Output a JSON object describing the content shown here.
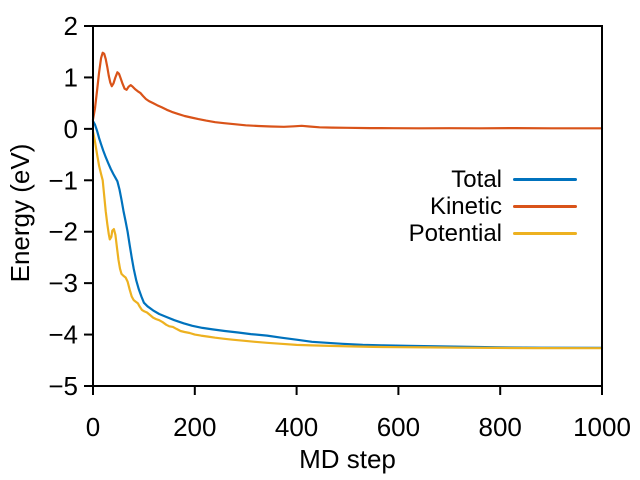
{
  "figure": {
    "background_color": "#ffffff",
    "frame_color": "#000000",
    "text_color": "#000000"
  },
  "chart_data": {
    "type": "line",
    "title": "",
    "xlabel": "MD step",
    "ylabel": "Energy (eV)",
    "xlim": [
      0,
      1000
    ],
    "ylim": [
      -5,
      2
    ],
    "xticks": [
      0,
      200,
      400,
      600,
      800,
      1000
    ],
    "yticks": [
      2,
      1,
      0,
      -1,
      -2,
      -3,
      -4,
      -5
    ],
    "grid": false,
    "legend_position": "center-right",
    "series": [
      {
        "name": "Total",
        "color": "#0072BD",
        "points": [
          [
            0,
            0.15
          ],
          [
            4,
            0.08
          ],
          [
            8,
            -0.04
          ],
          [
            12,
            -0.18
          ],
          [
            16,
            -0.3
          ],
          [
            20,
            -0.42
          ],
          [
            25,
            -0.55
          ],
          [
            30,
            -0.67
          ],
          [
            35,
            -0.78
          ],
          [
            40,
            -0.88
          ],
          [
            44,
            -0.95
          ],
          [
            48,
            -1.02
          ],
          [
            52,
            -1.18
          ],
          [
            56,
            -1.38
          ],
          [
            60,
            -1.6
          ],
          [
            64,
            -1.8
          ],
          [
            68,
            -2.0
          ],
          [
            72,
            -2.25
          ],
          [
            76,
            -2.5
          ],
          [
            80,
            -2.72
          ],
          [
            85,
            -2.95
          ],
          [
            90,
            -3.12
          ],
          [
            95,
            -3.26
          ],
          [
            100,
            -3.38
          ],
          [
            107,
            -3.45
          ],
          [
            118,
            -3.53
          ],
          [
            130,
            -3.6
          ],
          [
            145,
            -3.66
          ],
          [
            160,
            -3.72
          ],
          [
            178,
            -3.78
          ],
          [
            195,
            -3.83
          ],
          [
            215,
            -3.87
          ],
          [
            235,
            -3.9
          ],
          [
            259,
            -3.93
          ],
          [
            285,
            -3.96
          ],
          [
            310,
            -3.99
          ],
          [
            342,
            -4.02
          ],
          [
            370,
            -4.06
          ],
          [
            400,
            -4.1
          ],
          [
            430,
            -4.14
          ],
          [
            460,
            -4.16
          ],
          [
            490,
            -4.18
          ],
          [
            530,
            -4.2
          ],
          [
            570,
            -4.21
          ],
          [
            620,
            -4.22
          ],
          [
            680,
            -4.23
          ],
          [
            740,
            -4.24
          ],
          [
            800,
            -4.25
          ],
          [
            880,
            -4.255
          ],
          [
            1000,
            -4.26
          ]
        ]
      },
      {
        "name": "Kinetic",
        "color": "#D95319",
        "points": [
          [
            0,
            0.18
          ],
          [
            4,
            0.4
          ],
          [
            8,
            0.75
          ],
          [
            12,
            1.1
          ],
          [
            16,
            1.38
          ],
          [
            19,
            1.48
          ],
          [
            22,
            1.46
          ],
          [
            25,
            1.36
          ],
          [
            28,
            1.2
          ],
          [
            31,
            1.03
          ],
          [
            34,
            0.9
          ],
          [
            37,
            0.83
          ],
          [
            40,
            0.88
          ],
          [
            44,
            1.0
          ],
          [
            48,
            1.1
          ],
          [
            51,
            1.07
          ],
          [
            54,
            0.99
          ],
          [
            58,
            0.88
          ],
          [
            62,
            0.78
          ],
          [
            66,
            0.76
          ],
          [
            70,
            0.82
          ],
          [
            74,
            0.85
          ],
          [
            78,
            0.82
          ],
          [
            83,
            0.77
          ],
          [
            88,
            0.73
          ],
          [
            93,
            0.7
          ],
          [
            98,
            0.64
          ],
          [
            104,
            0.58
          ],
          [
            110,
            0.54
          ],
          [
            118,
            0.5
          ],
          [
            126,
            0.46
          ],
          [
            135,
            0.42
          ],
          [
            145,
            0.37
          ],
          [
            155,
            0.33
          ],
          [
            167,
            0.29
          ],
          [
            180,
            0.25
          ],
          [
            193,
            0.22
          ],
          [
            207,
            0.19
          ],
          [
            222,
            0.16
          ],
          [
            240,
            0.13
          ],
          [
            258,
            0.11
          ],
          [
            278,
            0.09
          ],
          [
            300,
            0.07
          ],
          [
            325,
            0.055
          ],
          [
            350,
            0.045
          ],
          [
            375,
            0.04
          ],
          [
            395,
            0.05
          ],
          [
            410,
            0.06
          ],
          [
            425,
            0.045
          ],
          [
            445,
            0.03
          ],
          [
            470,
            0.025
          ],
          [
            500,
            0.02
          ],
          [
            545,
            0.015
          ],
          [
            590,
            0.012
          ],
          [
            640,
            0.01
          ],
          [
            700,
            0.012
          ],
          [
            760,
            0.01
          ],
          [
            830,
            0.014
          ],
          [
            900,
            0.011
          ],
          [
            1000,
            0.01
          ]
        ]
      },
      {
        "name": "Potential",
        "color": "#EDB120",
        "points": [
          [
            0,
            -0.05
          ],
          [
            4,
            -0.25
          ],
          [
            8,
            -0.5
          ],
          [
            12,
            -0.72
          ],
          [
            16,
            -0.88
          ],
          [
            19,
            -1.0
          ],
          [
            22,
            -1.3
          ],
          [
            25,
            -1.6
          ],
          [
            28,
            -1.85
          ],
          [
            31,
            -2.05
          ],
          [
            33,
            -2.15
          ],
          [
            36,
            -2.1
          ],
          [
            38,
            -1.98
          ],
          [
            41,
            -1.95
          ],
          [
            44,
            -2.06
          ],
          [
            47,
            -2.3
          ],
          [
            50,
            -2.55
          ],
          [
            53,
            -2.72
          ],
          [
            56,
            -2.82
          ],
          [
            60,
            -2.86
          ],
          [
            64,
            -2.89
          ],
          [
            68,
            -2.97
          ],
          [
            72,
            -3.12
          ],
          [
            76,
            -3.26
          ],
          [
            80,
            -3.33
          ],
          [
            84,
            -3.36
          ],
          [
            88,
            -3.39
          ],
          [
            92,
            -3.46
          ],
          [
            96,
            -3.52
          ],
          [
            101,
            -3.55
          ],
          [
            106,
            -3.57
          ],
          [
            112,
            -3.62
          ],
          [
            118,
            -3.67
          ],
          [
            124,
            -3.7
          ],
          [
            130,
            -3.72
          ],
          [
            137,
            -3.76
          ],
          [
            144,
            -3.81
          ],
          [
            150,
            -3.84
          ],
          [
            157,
            -3.85
          ],
          [
            164,
            -3.89
          ],
          [
            172,
            -3.93
          ],
          [
            180,
            -3.95
          ],
          [
            190,
            -3.97
          ],
          [
            200,
            -4.0
          ],
          [
            212,
            -4.02
          ],
          [
            226,
            -4.04
          ],
          [
            240,
            -4.06
          ],
          [
            256,
            -4.08
          ],
          [
            274,
            -4.1
          ],
          [
            295,
            -4.12
          ],
          [
            318,
            -4.14
          ],
          [
            342,
            -4.16
          ],
          [
            370,
            -4.18
          ],
          [
            400,
            -4.2
          ],
          [
            430,
            -4.21
          ],
          [
            465,
            -4.22
          ],
          [
            505,
            -4.23
          ],
          [
            550,
            -4.24
          ],
          [
            600,
            -4.245
          ],
          [
            660,
            -4.25
          ],
          [
            720,
            -4.255
          ],
          [
            790,
            -4.26
          ],
          [
            870,
            -4.263
          ],
          [
            1000,
            -4.265
          ]
        ]
      }
    ]
  }
}
